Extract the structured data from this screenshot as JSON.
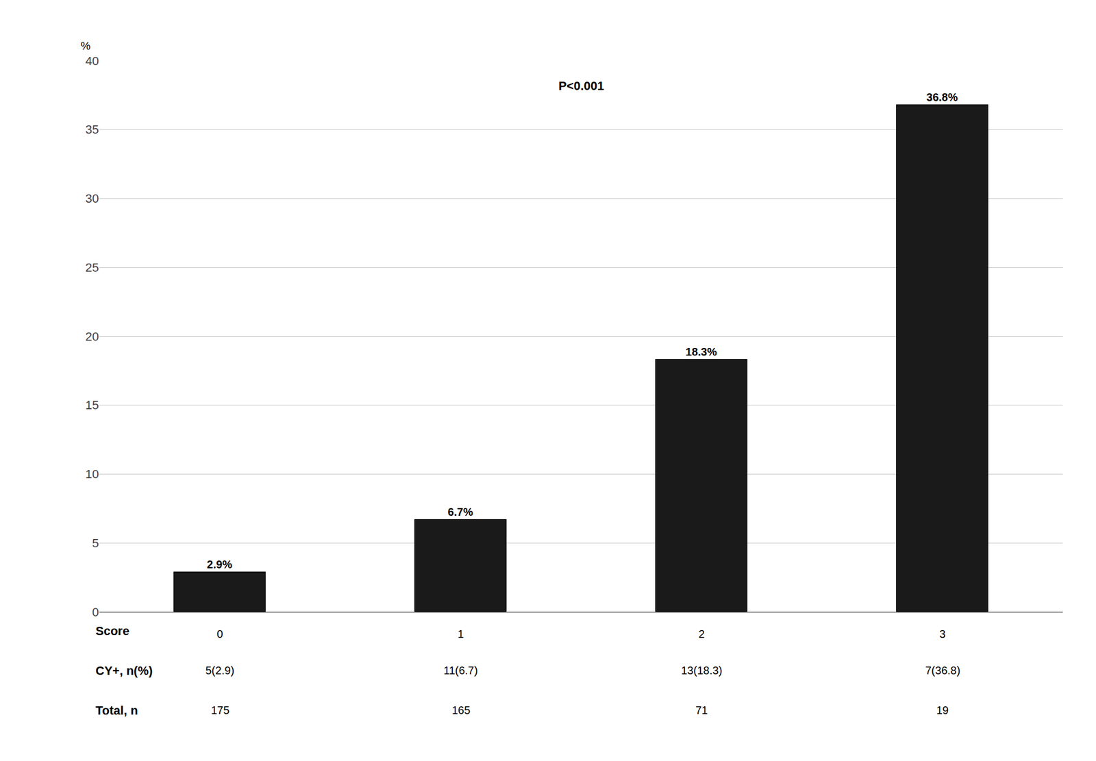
{
  "chart_data": {
    "type": "bar",
    "categories": [
      "0",
      "1",
      "2",
      "3"
    ],
    "values": [
      2.9,
      6.7,
      18.3,
      36.8
    ],
    "value_labels": [
      "2.9%",
      "6.7%",
      "18.3%",
      "36.8%"
    ],
    "data_labels": true,
    "color": "#1a1a1a",
    "xlabel": "Score",
    "ylabel": "%",
    "ylim": [
      0,
      40
    ],
    "yticks": [
      0,
      5,
      10,
      15,
      20,
      25,
      30,
      35,
      40
    ],
    "grid": true,
    "annotations": [
      "P<0.001"
    ],
    "table_rows": [
      {
        "label": "CY+, n(%)",
        "values": [
          "5(2.9)",
          "11(6.7)",
          "13(18.3)",
          "7(36.8)"
        ]
      },
      {
        "label": "Total, n",
        "values": [
          "175",
          "165",
          "71",
          "19"
        ]
      }
    ]
  }
}
